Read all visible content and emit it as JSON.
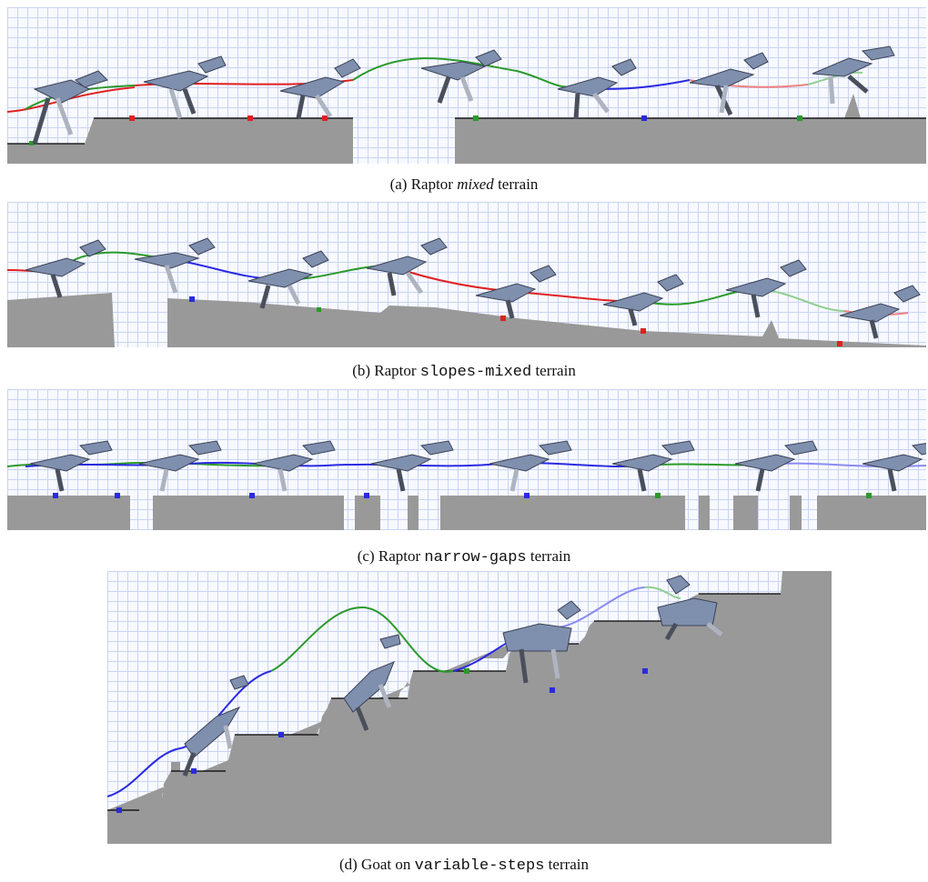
{
  "figure": {
    "panels": [
      {
        "label": "(a) Raptor",
        "terrain": "mixed",
        "suffix": "terrain"
      },
      {
        "label": "(b) Raptor",
        "terrain": "slopes-mixed",
        "suffix": "terrain"
      },
      {
        "label": "(c) Raptor",
        "terrain": "narrow-gaps",
        "suffix": "terrain"
      },
      {
        "label": "(d) Goat on",
        "terrain": "variable-steps",
        "suffix": "terrain"
      }
    ]
  },
  "colors": {
    "terrain": "#999999",
    "body": "#7f8fae",
    "body_stroke": "#3b4256",
    "leg_dark": "#4a4f5c",
    "leg_light": "#aeb4bf",
    "path_red": "#e02020",
    "path_green": "#2a9a2a",
    "path_blue": "#2a2ae0",
    "grid": "#c9d3f3"
  }
}
